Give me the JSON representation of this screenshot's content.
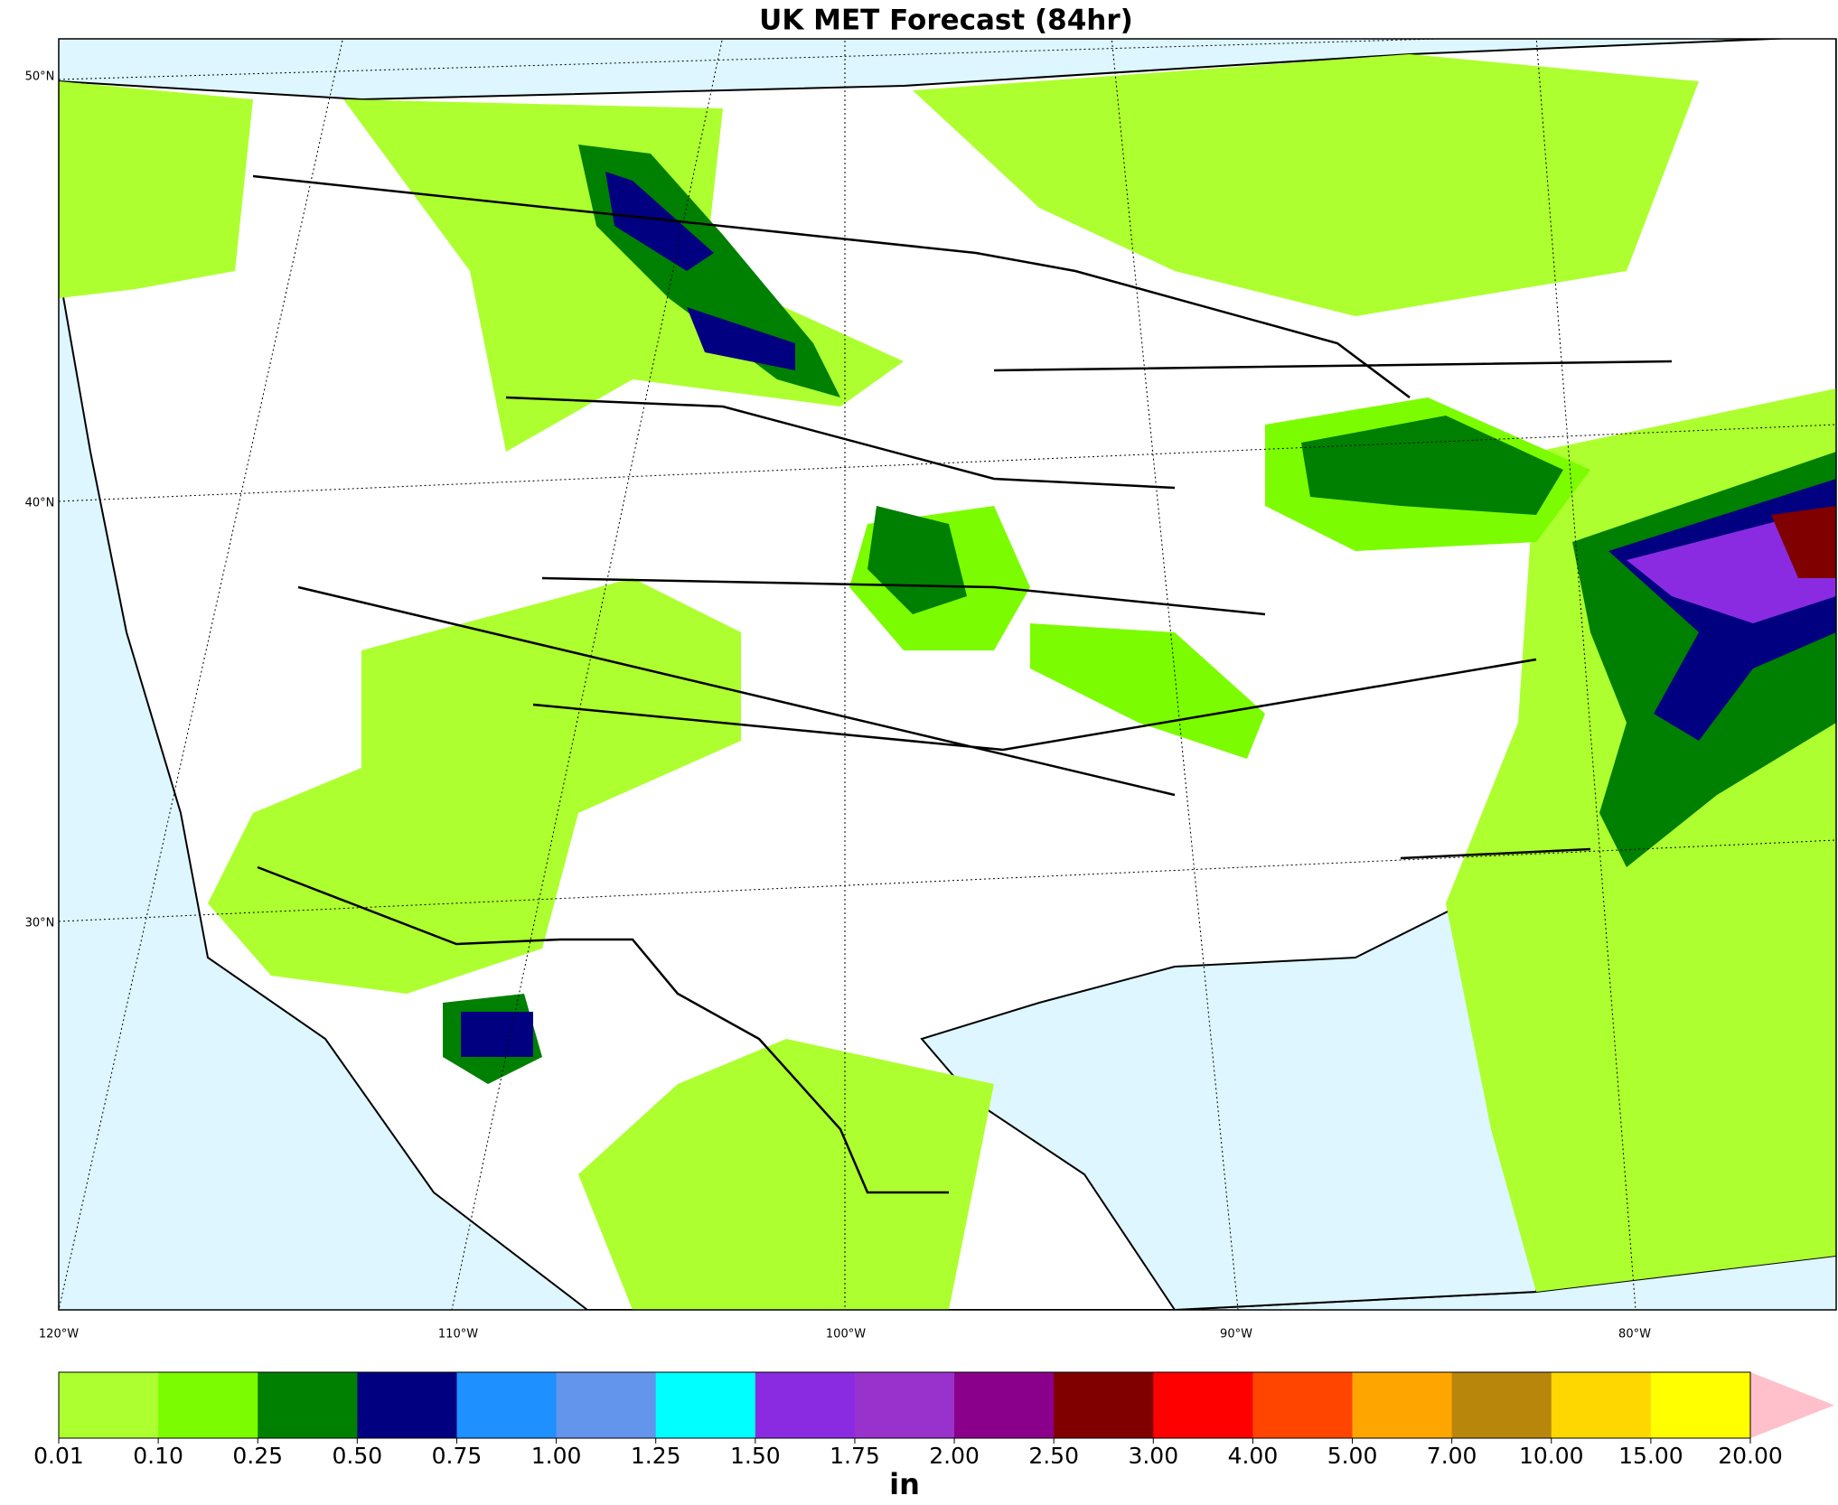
{
  "title": "UK MET Forecast (84hr)",
  "map": {
    "lat_labels": [
      "50°N",
      "40°N",
      "30°N"
    ],
    "lon_labels": [
      "120°W",
      "110°W",
      "100°W",
      "90°W",
      "80°W"
    ]
  },
  "colorbar": {
    "label": "in",
    "levels": [
      {
        "value": 0.01,
        "label": "0.01"
      },
      {
        "value": 0.1,
        "label": "0.10"
      },
      {
        "value": 0.25,
        "label": "0.25"
      },
      {
        "value": 0.5,
        "label": "0.50"
      },
      {
        "value": 0.75,
        "label": "0.75"
      },
      {
        "value": 1,
        "label": "1.00"
      },
      {
        "value": 1.25,
        "label": "1.25"
      },
      {
        "value": 1.5,
        "label": "1.50"
      },
      {
        "value": 1.75,
        "label": "1.75"
      },
      {
        "value": 2,
        "label": "2.00"
      },
      {
        "value": 2.5,
        "label": "2.50"
      },
      {
        "value": 3,
        "label": "3.00"
      },
      {
        "value": 4,
        "label": "4.00"
      },
      {
        "value": 5,
        "label": "5.00"
      },
      {
        "value": 7,
        "label": "7.00"
      },
      {
        "value": 10,
        "label": "10.00"
      },
      {
        "value": 15,
        "label": "15.00"
      },
      {
        "value": 20,
        "label": "20.00"
      }
    ],
    "colors": [
      "#adff2f",
      "#7cfc00",
      "#008000",
      "#000080",
      "#1e90ff",
      "#6495ed",
      "#00ffff",
      "#8a2be2",
      "#9932cc",
      "#8b008b",
      "#800000",
      "#ff0000",
      "#ff4500",
      "#ffa500",
      "#b8860b",
      "#ffd700",
      "#ffff00"
    ],
    "extend_color": "#ffc0cb"
  }
}
